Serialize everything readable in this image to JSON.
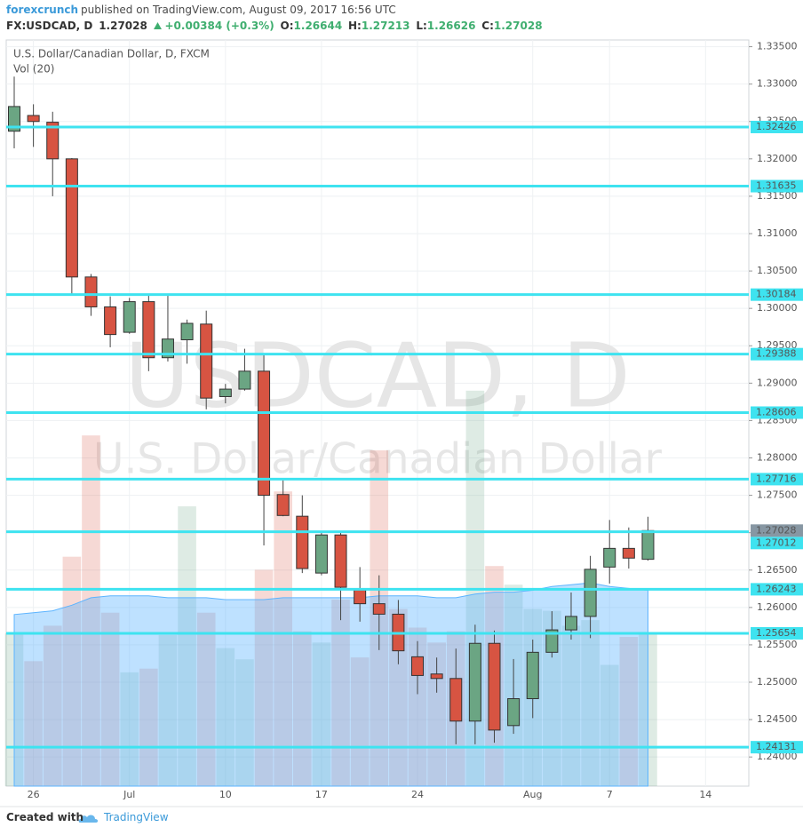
{
  "header": {
    "author": "forexcrunch",
    "published": "published on TradingView.com, August 09, 2017 16:56 UTC",
    "symbol": "FX:USDCAD, D",
    "last": "1.27028",
    "change": "+0.00384 (+0.3%)",
    "ohlc": [
      {
        "key": "O:",
        "value": "1.26644"
      },
      {
        "key": "H:",
        "value": "1.27213"
      },
      {
        "key": "L:",
        "value": "1.26626"
      },
      {
        "key": "C:",
        "value": "1.27028"
      }
    ]
  },
  "chart_data": {
    "type": "candlestick",
    "title": "U.S. Dollar/Canadian Dollar, D, FXCM",
    "watermark": {
      "symbol": "USDCAD, D",
      "description": "U.S. Dollar/Canadian Dollar"
    },
    "categories": [
      null,
      "26",
      null,
      null,
      null,
      null,
      "Jul",
      null,
      null,
      null,
      null,
      "10",
      null,
      null,
      null,
      null,
      "17",
      null,
      null,
      null,
      null,
      "24",
      null,
      null,
      null,
      null,
      null,
      "Aug",
      null,
      null,
      null,
      "7",
      null,
      null,
      null,
      null,
      "14"
    ],
    "open": [
      1.3237,
      1.3258,
      1.3249,
      1.32,
      1.3042,
      1.3002,
      1.2968,
      1.3009,
      1.2934,
      1.2958,
      1.2979,
      1.2882,
      1.2892,
      1.2916,
      1.2751,
      1.2722,
      1.2646,
      1.2697,
      1.2624,
      1.2605,
      1.2591,
      1.2534,
      1.2511,
      1.2505,
      1.2448,
      1.2552,
      1.2442,
      1.2478,
      1.254,
      1.257,
      1.2588,
      1.2654,
      1.2679,
      1.26644,
      null,
      null,
      null
    ],
    "high": [
      1.331,
      1.3273,
      1.3263,
      1.3201,
      1.3046,
      1.3016,
      1.3014,
      1.3017,
      1.3017,
      1.2985,
      1.2997,
      1.2899,
      1.2946,
      1.294,
      1.277,
      1.275,
      1.2702,
      1.27,
      1.2654,
      1.2643,
      1.261,
      1.2555,
      1.2533,
      1.2545,
      1.2577,
      1.2569,
      1.2531,
      1.2557,
      1.2595,
      1.262,
      1.2669,
      1.2717,
      1.2707,
      1.27213,
      null,
      null,
      null
    ],
    "low": [
      1.3214,
      1.3216,
      1.315,
      1.3017,
      1.299,
      1.2948,
      1.2966,
      1.2916,
      1.2929,
      1.2926,
      1.2865,
      1.2873,
      1.289,
      1.2683,
      1.2722,
      1.2646,
      1.2643,
      1.2583,
      1.2581,
      1.2543,
      1.2524,
      1.2484,
      1.2486,
      1.2417,
      1.2417,
      1.2419,
      1.2431,
      1.2452,
      1.2533,
      1.2557,
      1.2559,
      1.2632,
      1.2652,
      1.26626,
      null,
      null,
      null
    ],
    "close": [
      1.327,
      1.325,
      1.32,
      1.3042,
      1.3002,
      1.2965,
      1.3009,
      1.2934,
      1.2959,
      1.298,
      1.288,
      1.2892,
      1.2916,
      1.275,
      1.2723,
      1.2652,
      1.2697,
      1.2627,
      1.2605,
      1.2591,
      1.2542,
      1.2509,
      1.2505,
      1.2448,
      1.2552,
      1.2436,
      1.2478,
      1.254,
      1.257,
      1.2588,
      1.2651,
      1.2679,
      1.2666,
      1.27028,
      null,
      null,
      null
    ],
    "up_color": "#6ba583",
    "down_color": "#d75442",
    "volume": {
      "name": "Vol (20)",
      "axis": "y2",
      "values": [
        82,
        67,
        86,
        123,
        188,
        93,
        61,
        63,
        81,
        150,
        93,
        74,
        68,
        116,
        158,
        83,
        77,
        100,
        69,
        180,
        95,
        85,
        77,
        83,
        212,
        118,
        108,
        95,
        94,
        86,
        89,
        65,
        80,
        82,
        null,
        null,
        null
      ],
      "ma": [
        92,
        93,
        94,
        97,
        101,
        102,
        102,
        102,
        101,
        101,
        101,
        100,
        100,
        100,
        101,
        101,
        101,
        101,
        101,
        102,
        102,
        102,
        101,
        101,
        103,
        104,
        104,
        105,
        107,
        108,
        109,
        107,
        106,
        105,
        null,
        null,
        null
      ],
      "ma_color": "#5cb4ff"
    },
    "y2lim": [
      0,
      400
    ],
    "ylim": [
      1.2361,
      1.3359
    ],
    "yticks": [
      {
        "value": 1.335,
        "label": "1.33500"
      },
      {
        "value": 1.33,
        "label": "1.33000"
      },
      {
        "value": 1.325,
        "label": "1.32500"
      },
      {
        "value": 1.32,
        "label": "1.32000"
      },
      {
        "value": 1.315,
        "label": "1.31500"
      },
      {
        "value": 1.31,
        "label": "1.31000"
      },
      {
        "value": 1.305,
        "label": "1.30500"
      },
      {
        "value": 1.3,
        "label": "1.30000"
      },
      {
        "value": 1.295,
        "label": "1.29500"
      },
      {
        "value": 1.29,
        "label": "1.29000"
      },
      {
        "value": 1.285,
        "label": "1.28500"
      },
      {
        "value": 1.28,
        "label": "1.28000"
      },
      {
        "value": 1.275,
        "label": "1.27500"
      },
      {
        "value": 1.27,
        "label": "1.27000"
      },
      {
        "value": 1.265,
        "label": "1.26500"
      },
      {
        "value": 1.26,
        "label": "1.26000"
      },
      {
        "value": 1.255,
        "label": "1.25500"
      },
      {
        "value": 1.25,
        "label": "1.25000"
      },
      {
        "value": 1.245,
        "label": "1.24500"
      },
      {
        "value": 1.24,
        "label": "1.24000"
      }
    ],
    "grid": true,
    "horizontal_lines": {
      "values": [
        1.32426,
        1.31635,
        1.30184,
        1.29388,
        1.28606,
        1.27716,
        1.27012,
        1.26243,
        1.25654,
        1.24131
      ],
      "color": "#3ee3f0"
    },
    "last_color": "#8797a3"
  },
  "footer": {
    "created_with": "Created with",
    "brand": "TradingView"
  }
}
